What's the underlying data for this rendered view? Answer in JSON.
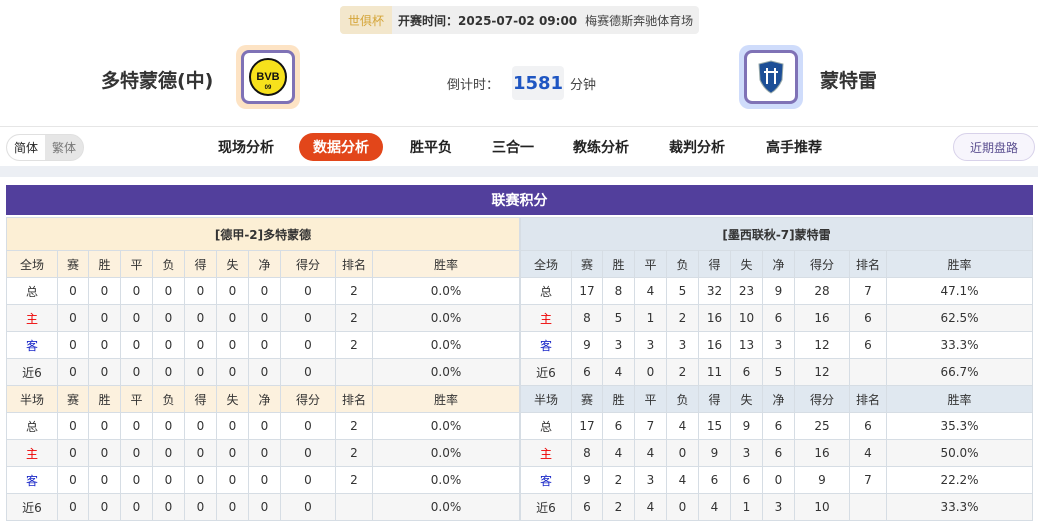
{
  "match": {
    "cup": "世俱杯",
    "kickoff": "开赛时间：2025-07-02 09:00",
    "venue": "梅赛德斯奔驰体育场",
    "home_team": "多特蒙德(中)",
    "away_team": "蒙特雷",
    "countdown_label": "倒计时：",
    "countdown_value": "1581",
    "countdown_unit": "分钟"
  },
  "lang": {
    "simplified": "简体",
    "traditional": "繁体"
  },
  "nav": {
    "items": [
      "现场分析",
      "数据分析",
      "胜平负",
      "三合一",
      "教练分析",
      "裁判分析",
      "高手推荐"
    ],
    "active": "数据分析",
    "recent": "近期盘路"
  },
  "standings": {
    "title": "联赛积分",
    "columns": [
      "赛",
      "胜",
      "平",
      "负",
      "得",
      "失",
      "净",
      "得分",
      "排名",
      "胜率"
    ],
    "full_label": "全场",
    "half_label": "半场",
    "home": {
      "header": "[德甲-2]多特蒙德",
      "full": [
        [
          "总",
          "0",
          "0",
          "0",
          "0",
          "0",
          "0",
          "0",
          "0",
          "2",
          "0.0%"
        ],
        [
          "主",
          "0",
          "0",
          "0",
          "0",
          "0",
          "0",
          "0",
          "0",
          "2",
          "0.0%"
        ],
        [
          "客",
          "0",
          "0",
          "0",
          "0",
          "0",
          "0",
          "0",
          "0",
          "2",
          "0.0%"
        ],
        [
          "近6",
          "0",
          "0",
          "0",
          "0",
          "0",
          "0",
          "0",
          "0",
          "",
          "0.0%"
        ]
      ],
      "half": [
        [
          "总",
          "0",
          "0",
          "0",
          "0",
          "0",
          "0",
          "0",
          "0",
          "2",
          "0.0%"
        ],
        [
          "主",
          "0",
          "0",
          "0",
          "0",
          "0",
          "0",
          "0",
          "0",
          "2",
          "0.0%"
        ],
        [
          "客",
          "0",
          "0",
          "0",
          "0",
          "0",
          "0",
          "0",
          "0",
          "2",
          "0.0%"
        ],
        [
          "近6",
          "0",
          "0",
          "0",
          "0",
          "0",
          "0",
          "0",
          "0",
          "",
          "0.0%"
        ]
      ]
    },
    "away": {
      "header": "[墨西联秋-7]蒙特雷",
      "full": [
        [
          "总",
          "17",
          "8",
          "4",
          "5",
          "32",
          "23",
          "9",
          "28",
          "7",
          "47.1%"
        ],
        [
          "主",
          "8",
          "5",
          "1",
          "2",
          "16",
          "10",
          "6",
          "16",
          "6",
          "62.5%"
        ],
        [
          "客",
          "9",
          "3",
          "3",
          "3",
          "16",
          "13",
          "3",
          "12",
          "6",
          "33.3%"
        ],
        [
          "近6",
          "6",
          "4",
          "0",
          "2",
          "11",
          "6",
          "5",
          "12",
          "",
          "66.7%"
        ]
      ],
      "half": [
        [
          "总",
          "17",
          "6",
          "7",
          "4",
          "15",
          "9",
          "6",
          "25",
          "6",
          "35.3%"
        ],
        [
          "主",
          "8",
          "4",
          "4",
          "0",
          "9",
          "3",
          "6",
          "16",
          "4",
          "50.0%"
        ],
        [
          "客",
          "9",
          "2",
          "3",
          "4",
          "6",
          "6",
          "0",
          "9",
          "7",
          "22.2%"
        ],
        [
          "近6",
          "6",
          "2",
          "4",
          "0",
          "4",
          "1",
          "3",
          "10",
          "",
          "33.3%"
        ]
      ]
    }
  },
  "colors": {
    "accent": "#e2461a",
    "title_bg": "#523f9c",
    "home_label": "#ee0000",
    "away_label": "#1a28c8"
  }
}
